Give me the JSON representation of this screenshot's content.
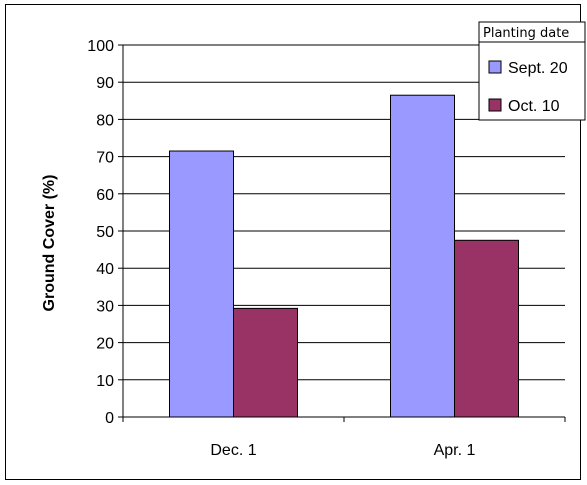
{
  "chart_data": {
    "type": "bar",
    "categories": [
      "Dec. 1",
      "Apr. 1"
    ],
    "series": [
      {
        "name": "Sept. 20",
        "values": [
          71.5,
          86.5
        ],
        "color": "#9999ff"
      },
      {
        "name": "Oct. 10",
        "values": [
          29.2,
          47.5
        ],
        "color": "#993366"
      }
    ],
    "title": "",
    "xlabel": "",
    "ylabel": "Ground Cover (%)",
    "ylim": [
      0,
      100
    ],
    "yticks": [
      0,
      10,
      20,
      30,
      40,
      50,
      60,
      70,
      80,
      90,
      100
    ],
    "grid": true,
    "legend": {
      "title": "Planting date",
      "placement": "top-right"
    }
  }
}
